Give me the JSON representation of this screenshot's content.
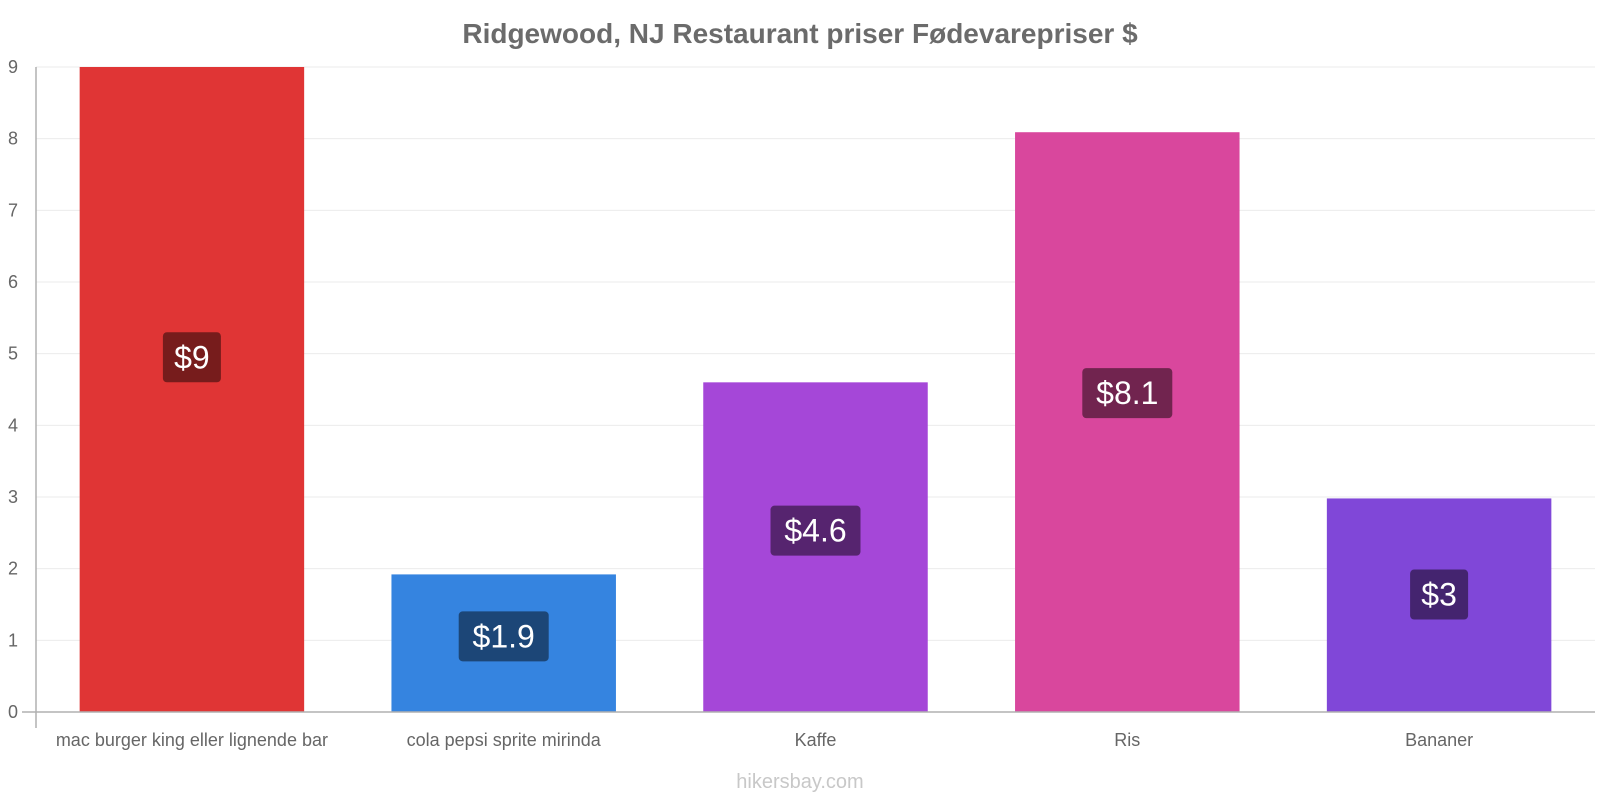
{
  "chart_data": {
    "type": "bar",
    "title": "Ridgewood, NJ Restaurant priser Fødevarepriser $",
    "categories": [
      "mac burger king eller lignende bar",
      "cola pepsi sprite mirinda",
      "Kaffe",
      "Ris",
      "Bananer"
    ],
    "values": [
      9,
      1.92,
      4.6,
      8.09,
      2.98
    ],
    "value_labels": [
      "$9",
      "$1.9",
      "$4.6",
      "$8.1",
      "$3"
    ],
    "colors": [
      "#e03535",
      "#3584e0",
      "#a547d8",
      "#d9479d",
      "#8047d8"
    ],
    "label_colors": [
      "#771c1c",
      "#1c4677",
      "#56246f",
      "#71244f",
      "#44246f"
    ],
    "yticks": [
      "0",
      "1",
      "2",
      "3",
      "4",
      "5",
      "6",
      "7",
      "8",
      "9"
    ],
    "ylim": [
      0,
      9
    ],
    "grid": true,
    "xlabel": "",
    "ylabel": ""
  },
  "footer": "hikersbay.com"
}
